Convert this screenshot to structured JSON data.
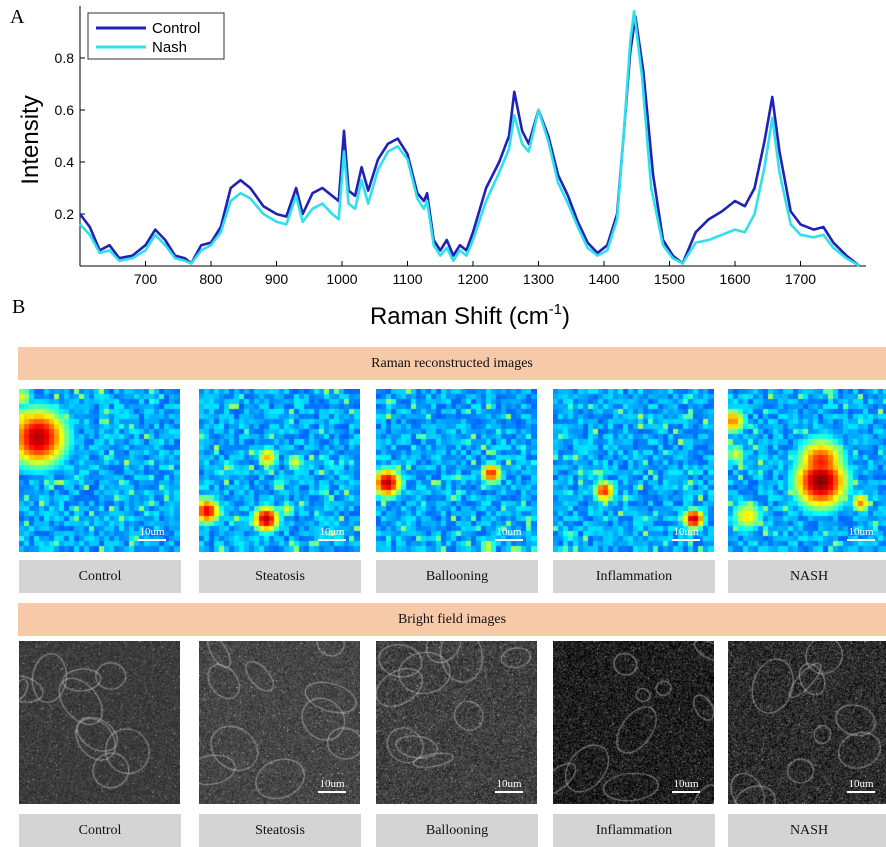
{
  "panel_labels": {
    "a": "A",
    "b": "B"
  },
  "chart_data": {
    "type": "line",
    "xlabel": "Raman Shift (cm",
    "xlabel_sup": "-1",
    "xlabel_close": ")",
    "ylabel": "Intensity",
    "xlim": [
      600,
      1800
    ],
    "ylim": [
      0,
      1.0
    ],
    "xticks": [
      700,
      800,
      900,
      1000,
      1100,
      1200,
      1300,
      1400,
      1500,
      1600,
      1700
    ],
    "yticks": [
      0.2,
      0.4,
      0.6,
      0.8
    ],
    "legend_position": "top-left",
    "grid": false,
    "series": [
      {
        "name": "Control",
        "color": "#1f22b4",
        "points": [
          [
            600,
            0.2
          ],
          [
            615,
            0.15
          ],
          [
            630,
            0.06
          ],
          [
            645,
            0.08
          ],
          [
            660,
            0.03
          ],
          [
            680,
            0.04
          ],
          [
            700,
            0.08
          ],
          [
            715,
            0.14
          ],
          [
            730,
            0.1
          ],
          [
            745,
            0.04
          ],
          [
            760,
            0.03
          ],
          [
            770,
            0.01
          ],
          [
            785,
            0.08
          ],
          [
            800,
            0.09
          ],
          [
            815,
            0.15
          ],
          [
            830,
            0.3
          ],
          [
            845,
            0.33
          ],
          [
            860,
            0.3
          ],
          [
            880,
            0.23
          ],
          [
            900,
            0.2
          ],
          [
            915,
            0.19
          ],
          [
            930,
            0.3
          ],
          [
            940,
            0.2
          ],
          [
            955,
            0.28
          ],
          [
            970,
            0.3
          ],
          [
            985,
            0.27
          ],
          [
            995,
            0.25
          ],
          [
            1003,
            0.52
          ],
          [
            1010,
            0.29
          ],
          [
            1020,
            0.27
          ],
          [
            1030,
            0.38
          ],
          [
            1040,
            0.29
          ],
          [
            1055,
            0.41
          ],
          [
            1070,
            0.47
          ],
          [
            1085,
            0.49
          ],
          [
            1100,
            0.43
          ],
          [
            1115,
            0.28
          ],
          [
            1125,
            0.25
          ],
          [
            1130,
            0.28
          ],
          [
            1140,
            0.1
          ],
          [
            1150,
            0.06
          ],
          [
            1160,
            0.1
          ],
          [
            1170,
            0.04
          ],
          [
            1180,
            0.08
          ],
          [
            1190,
            0.06
          ],
          [
            1200,
            0.13
          ],
          [
            1220,
            0.3
          ],
          [
            1240,
            0.4
          ],
          [
            1255,
            0.5
          ],
          [
            1263,
            0.67
          ],
          [
            1275,
            0.52
          ],
          [
            1285,
            0.47
          ],
          [
            1300,
            0.6
          ],
          [
            1315,
            0.5
          ],
          [
            1330,
            0.35
          ],
          [
            1345,
            0.27
          ],
          [
            1360,
            0.17
          ],
          [
            1375,
            0.09
          ],
          [
            1390,
            0.05
          ],
          [
            1405,
            0.08
          ],
          [
            1420,
            0.2
          ],
          [
            1430,
            0.5
          ],
          [
            1440,
            0.82
          ],
          [
            1448,
            0.96
          ],
          [
            1460,
            0.75
          ],
          [
            1475,
            0.35
          ],
          [
            1490,
            0.1
          ],
          [
            1505,
            0.04
          ],
          [
            1520,
            0.01
          ],
          [
            1540,
            0.13
          ],
          [
            1560,
            0.18
          ],
          [
            1580,
            0.21
          ],
          [
            1600,
            0.25
          ],
          [
            1615,
            0.23
          ],
          [
            1630,
            0.3
          ],
          [
            1645,
            0.48
          ],
          [
            1657,
            0.65
          ],
          [
            1668,
            0.44
          ],
          [
            1685,
            0.21
          ],
          [
            1700,
            0.16
          ],
          [
            1720,
            0.14
          ],
          [
            1735,
            0.15
          ],
          [
            1750,
            0.09
          ],
          [
            1770,
            0.04
          ],
          [
            1790,
            0.0
          ]
        ]
      },
      {
        "name": "Nash",
        "color": "#2fe0ea",
        "points": [
          [
            600,
            0.16
          ],
          [
            615,
            0.12
          ],
          [
            630,
            0.05
          ],
          [
            645,
            0.06
          ],
          [
            660,
            0.02
          ],
          [
            680,
            0.03
          ],
          [
            700,
            0.06
          ],
          [
            715,
            0.12
          ],
          [
            730,
            0.08
          ],
          [
            745,
            0.03
          ],
          [
            760,
            0.02
          ],
          [
            770,
            0.01
          ],
          [
            785,
            0.06
          ],
          [
            800,
            0.08
          ],
          [
            815,
            0.13
          ],
          [
            830,
            0.25
          ],
          [
            845,
            0.28
          ],
          [
            860,
            0.26
          ],
          [
            880,
            0.2
          ],
          [
            900,
            0.17
          ],
          [
            915,
            0.16
          ],
          [
            930,
            0.27
          ],
          [
            940,
            0.17
          ],
          [
            955,
            0.22
          ],
          [
            970,
            0.24
          ],
          [
            985,
            0.2
          ],
          [
            995,
            0.18
          ],
          [
            1003,
            0.44
          ],
          [
            1010,
            0.24
          ],
          [
            1020,
            0.22
          ],
          [
            1030,
            0.33
          ],
          [
            1040,
            0.24
          ],
          [
            1055,
            0.37
          ],
          [
            1070,
            0.44
          ],
          [
            1085,
            0.46
          ],
          [
            1100,
            0.41
          ],
          [
            1115,
            0.26
          ],
          [
            1125,
            0.22
          ],
          [
            1130,
            0.25
          ],
          [
            1140,
            0.08
          ],
          [
            1150,
            0.04
          ],
          [
            1160,
            0.07
          ],
          [
            1170,
            0.02
          ],
          [
            1180,
            0.06
          ],
          [
            1190,
            0.04
          ],
          [
            1200,
            0.1
          ],
          [
            1220,
            0.25
          ],
          [
            1240,
            0.36
          ],
          [
            1255,
            0.45
          ],
          [
            1263,
            0.58
          ],
          [
            1275,
            0.47
          ],
          [
            1285,
            0.44
          ],
          [
            1300,
            0.6
          ],
          [
            1315,
            0.48
          ],
          [
            1330,
            0.32
          ],
          [
            1345,
            0.24
          ],
          [
            1360,
            0.15
          ],
          [
            1375,
            0.07
          ],
          [
            1390,
            0.04
          ],
          [
            1405,
            0.06
          ],
          [
            1420,
            0.18
          ],
          [
            1430,
            0.5
          ],
          [
            1440,
            0.86
          ],
          [
            1446,
            0.98
          ],
          [
            1458,
            0.73
          ],
          [
            1472,
            0.3
          ],
          [
            1490,
            0.08
          ],
          [
            1505,
            0.03
          ],
          [
            1520,
            0.01
          ],
          [
            1540,
            0.09
          ],
          [
            1560,
            0.1
          ],
          [
            1580,
            0.12
          ],
          [
            1600,
            0.14
          ],
          [
            1615,
            0.13
          ],
          [
            1630,
            0.2
          ],
          [
            1645,
            0.38
          ],
          [
            1657,
            0.57
          ],
          [
            1668,
            0.36
          ],
          [
            1685,
            0.16
          ],
          [
            1700,
            0.12
          ],
          [
            1720,
            0.11
          ],
          [
            1735,
            0.12
          ],
          [
            1750,
            0.07
          ],
          [
            1770,
            0.03
          ],
          [
            1790,
            0.0
          ]
        ]
      }
    ]
  },
  "sections": {
    "raman_title": "Raman reconstructed images",
    "bright_title": "Bright field images"
  },
  "scale_label": "10um",
  "raman_captions": [
    "Control",
    "Steatosis",
    "Ballooning",
    "Inflammation",
    "NASH"
  ],
  "bright_captions": [
    "Control",
    "Steatosis",
    "Ballooning",
    "Inflammation",
    "NASH"
  ]
}
